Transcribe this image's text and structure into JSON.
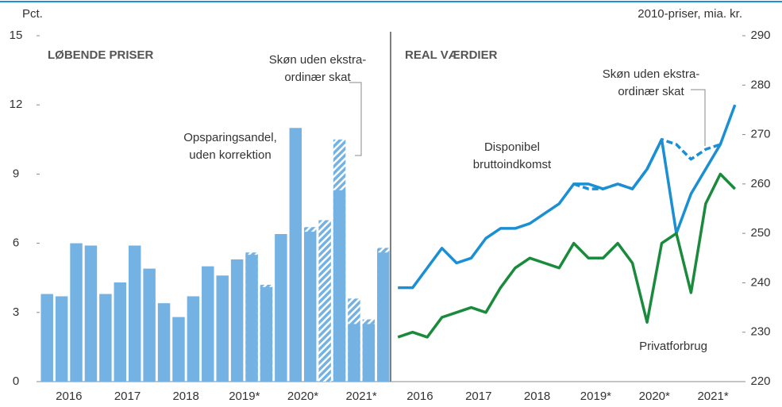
{
  "chart_data": [
    {
      "type": "bar",
      "ylabel": "Pct.",
      "panel_title": "LØBENDE PRISER",
      "categories": [
        "2016",
        null,
        null,
        null,
        "2017",
        null,
        null,
        null,
        "2018",
        null,
        null,
        null,
        "2019*",
        null,
        null,
        null,
        "2020*",
        null,
        null,
        null,
        "2021*",
        null,
        null,
        null
      ],
      "ylim": [
        0,
        15
      ],
      "yticks": [
        0,
        3,
        6,
        9,
        12,
        15
      ],
      "series": [
        {
          "name": [
            "Opsparingsandel,",
            "uden korrektion"
          ],
          "color": "#74b2e3",
          "values": [
            3.8,
            3.7,
            6.0,
            5.9,
            3.8,
            4.3,
            5.9,
            4.9,
            3.4,
            2.8,
            3.7,
            5.0,
            4.6,
            5.3,
            5.5,
            4.1,
            6.4,
            11.0,
            6.5,
            0,
            8.3,
            2.5,
            2.5,
            5.6
          ]
        },
        {
          "name": [
            "Skøn uden ekstra-",
            "ordinær skat"
          ],
          "color": "#74b2e3",
          "hatched": true,
          "values": [
            null,
            null,
            null,
            null,
            null,
            null,
            null,
            null,
            null,
            null,
            null,
            null,
            null,
            null,
            5.6,
            4.2,
            null,
            null,
            6.7,
            7.0,
            10.5,
            3.6,
            2.7,
            5.8
          ]
        }
      ]
    },
    {
      "type": "line",
      "y2label": "2010-priser, mia. kr.",
      "panel_title": "REAL VÆRDIER",
      "categories": [
        "2016",
        null,
        null,
        null,
        "2017",
        null,
        null,
        null,
        "2018",
        null,
        null,
        null,
        "2019*",
        null,
        null,
        null,
        "2020*",
        null,
        null,
        null,
        "2021*",
        null,
        null,
        null
      ],
      "y2lim": [
        220,
        290
      ],
      "y2ticks": [
        220,
        230,
        240,
        250,
        260,
        270,
        280,
        290
      ],
      "series": [
        {
          "name": [
            "Disponibel",
            "bruttoindkomst"
          ],
          "color": "#1a8fd4",
          "axis": "y2",
          "values": [
            239,
            239,
            243,
            247,
            244,
            245,
            249,
            251,
            251,
            252,
            254,
            256,
            260,
            260,
            259,
            260,
            259,
            263,
            269,
            250,
            258,
            263,
            268,
            276
          ]
        },
        {
          "name": [
            "Skøn uden ekstra-",
            "ordinær skat"
          ],
          "color": "#1a8fd4",
          "axis": "y2",
          "dashed": true,
          "values": [
            null,
            null,
            null,
            null,
            null,
            null,
            null,
            null,
            null,
            null,
            null,
            null,
            260,
            259,
            259,
            260,
            259,
            263,
            269,
            268,
            265,
            267,
            268,
            null
          ]
        },
        {
          "name": [
            "Privatforbrug"
          ],
          "color": "#1a8a3c",
          "axis": "y2",
          "values": [
            229,
            230,
            229,
            233,
            234,
            235,
            234,
            239,
            243,
            245,
            244,
            243,
            248,
            245,
            245,
            248,
            244,
            232,
            248,
            250,
            238,
            256,
            262,
            259
          ]
        }
      ]
    }
  ]
}
